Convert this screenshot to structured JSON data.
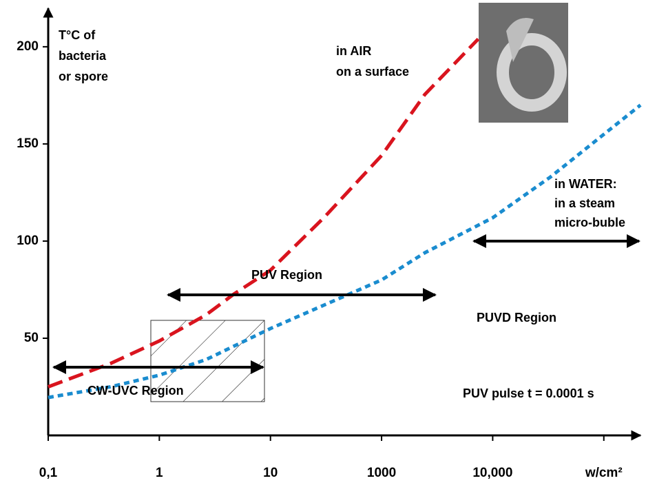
{
  "chart_data": {
    "type": "line",
    "y_label": [
      "T°C of",
      "bacteria",
      "or spore"
    ],
    "xlim": [
      0,
      5.33
    ],
    "ylim": [
      0,
      223
    ],
    "xticks": [
      {
        "value": 0,
        "label": "0,1"
      },
      {
        "value": 1,
        "label": "1"
      },
      {
        "value": 2,
        "label": "10"
      },
      {
        "value": 3,
        "label": "1000"
      },
      {
        "value": 4,
        "label": "10,000"
      },
      {
        "value": 5,
        "label": "w/cm²"
      }
    ],
    "yticks": [
      50,
      100,
      150,
      200
    ],
    "series": [
      {
        "name": [
          "in AIR",
          "on a surface"
        ],
        "color": "#d9141e",
        "dash": "dashed",
        "x": [
          0,
          0.56,
          1,
          1.42,
          1.67,
          2,
          2.48,
          3,
          3.39,
          3.87
        ],
        "values": [
          25,
          37,
          48.6,
          62,
          72.7,
          85,
          112,
          144,
          175.5,
          204
        ]
      },
      {
        "name": [
          "in WATER:",
          "in a steam",
          "micro-buble"
        ],
        "color": "#1a8ccf",
        "dash": "dotted",
        "x": [
          0,
          0.56,
          1,
          1.42,
          2,
          2.48,
          3,
          3.39,
          4,
          4.52,
          5.33
        ],
        "values": [
          19.5,
          25,
          31,
          39,
          55,
          67,
          80,
          94,
          112,
          133,
          170
        ]
      }
    ],
    "annotations": {
      "puv_region": "PUV Region",
      "puvd_region": "PUVD Region",
      "cw_uvc_region": "CW-UVC Region",
      "pulse": "PUV pulse t = 0.0001 s"
    }
  }
}
